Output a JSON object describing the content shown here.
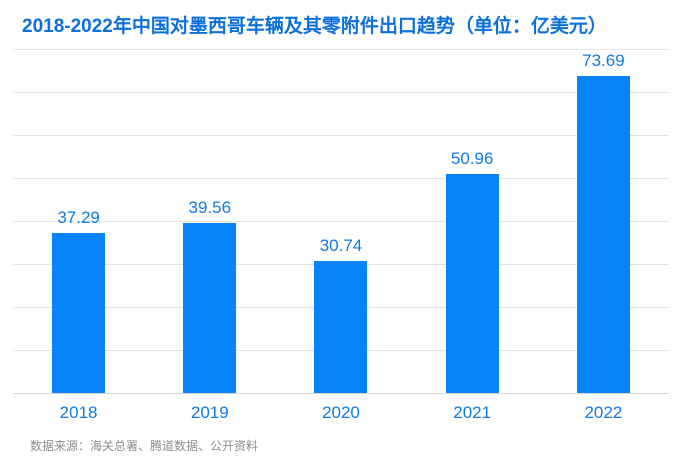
{
  "title": {
    "text": "2018-2022年中国对墨西哥车辆及其零附件出口趋势（单位：亿美元）",
    "color": "#0c70dc"
  },
  "chart_data": {
    "type": "bar",
    "title": "2018-2022年中国对墨西哥车辆及其零附件出口趋势（单位：亿美元）",
    "categories": [
      "2018",
      "2019",
      "2020",
      "2021",
      "2022"
    ],
    "values": [
      37.29,
      39.56,
      30.74,
      50.96,
      73.69
    ],
    "value_labels": [
      "37.29",
      "39.56",
      "30.74",
      "50.96",
      "73.69"
    ],
    "unit": "亿美元",
    "xlabel": "",
    "ylabel": "",
    "ylim": [
      0,
      80
    ],
    "grid_step": 10,
    "grid": true,
    "y_tick_labels_shown": false,
    "legend": "none",
    "bar_color": "#0884fb",
    "label_color": "#0f7be2",
    "grid_color": "#e3e3e3"
  },
  "source": {
    "text": "数据来源：海关总署、腾道数据、公开资料",
    "color": "#8c8c8c"
  }
}
